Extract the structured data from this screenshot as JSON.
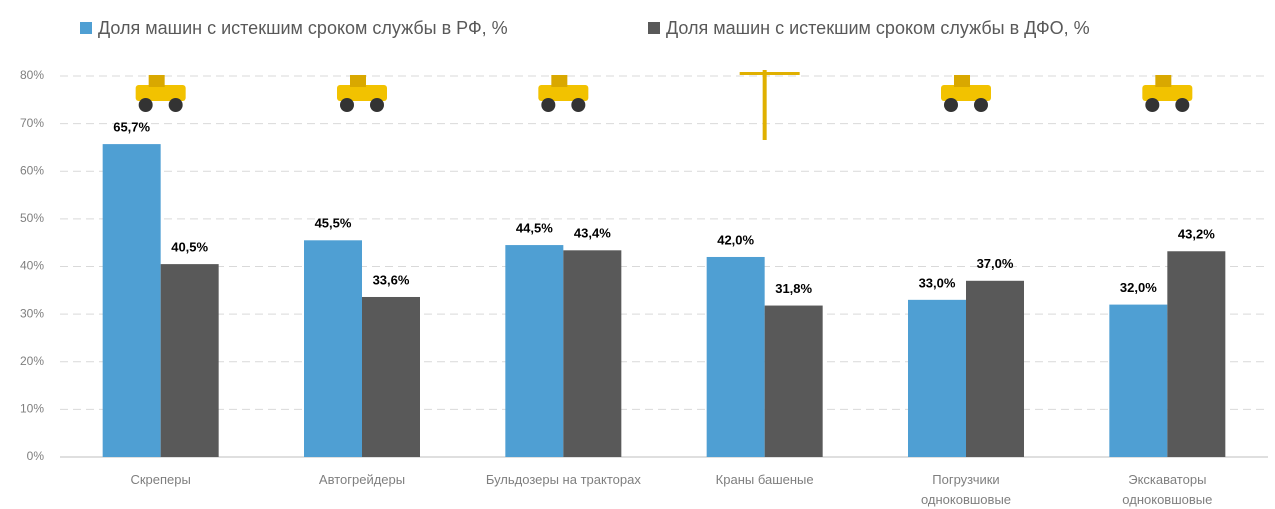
{
  "chart_data": {
    "type": "bar",
    "categories": [
      "Скреперы",
      "Автогрейдеры",
      "Бульдозеры на тракторах",
      "Краны башеные",
      "Погрузчики\nодноковшовые",
      "Экскаваторы\nодноковшовые"
    ],
    "series": [
      {
        "name": "Доля машин с истекшим сроком службы в РФ, %",
        "color": "#4f9fd3",
        "values": [
          65.7,
          45.5,
          44.5,
          42.0,
          33.0,
          32.0
        ],
        "value_labels": [
          "65,7%",
          "45,5%",
          "44,5%",
          "42,0%",
          "33,0%",
          "32,0%"
        ]
      },
      {
        "name": "Доля машин с истекшим сроком службы в ДФО, %",
        "color": "#595959",
        "values": [
          40.5,
          33.6,
          43.4,
          31.8,
          37.0,
          43.2
        ],
        "value_labels": [
          "40,5%",
          "33,6%",
          "43,4%",
          "31,8%",
          "37,0%",
          "43,2%"
        ]
      }
    ],
    "ylim": [
      0,
      80
    ],
    "yticks": [
      {
        "value": 0,
        "label": "0%"
      },
      {
        "value": 10,
        "label": "10%"
      },
      {
        "value": 20,
        "label": "20%"
      },
      {
        "value": 30,
        "label": "30%"
      },
      {
        "value": 40,
        "label": "40%"
      },
      {
        "value": 50,
        "label": "50%"
      },
      {
        "value": 60,
        "label": "60%"
      },
      {
        "value": 70,
        "label": "70%"
      },
      {
        "value": 80,
        "label": "80%"
      }
    ],
    "grid": true
  }
}
